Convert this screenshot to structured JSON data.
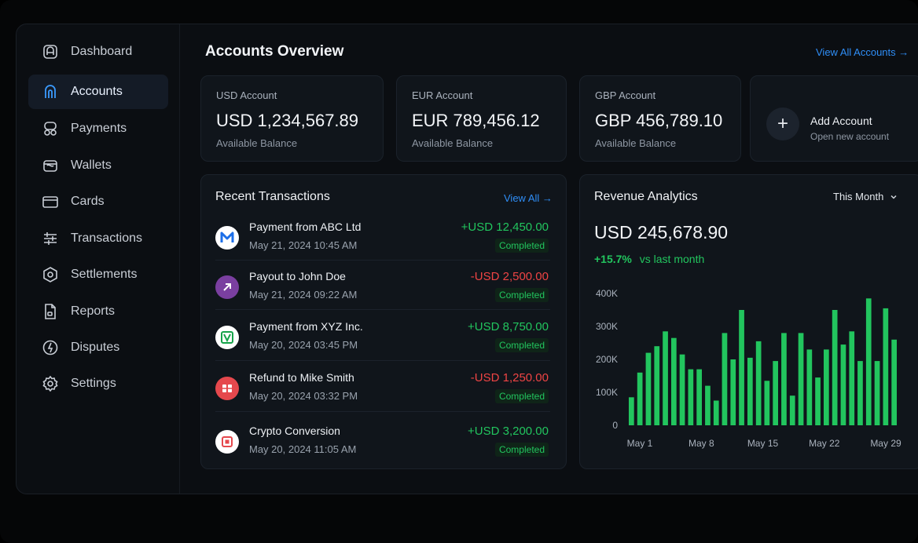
{
  "sidebar": {
    "items": [
      {
        "label": "Dashboard",
        "icon": "dashboard-icon"
      },
      {
        "label": "Accounts",
        "icon": "accounts-icon",
        "active": true
      },
      {
        "label": "Payments",
        "icon": "payments-icon"
      },
      {
        "label": "Wallets",
        "icon": "wallet-icon"
      },
      {
        "label": "Cards",
        "icon": "card-icon"
      },
      {
        "label": "Transactions",
        "icon": "sliders-icon"
      },
      {
        "label": "Settlements",
        "icon": "settlements-icon"
      },
      {
        "label": "Reports",
        "icon": "document-icon"
      },
      {
        "label": "Disputes",
        "icon": "alert-icon"
      },
      {
        "label": "Settings",
        "icon": "gear-icon"
      }
    ]
  },
  "header": {
    "title": "Accounts Overview",
    "view_all_label": "View All Accounts →"
  },
  "accounts": [
    {
      "name": "USD Account",
      "amount": "USD 1,234,567.89",
      "subtitle": "Available Balance"
    },
    {
      "name": "EUR Account",
      "amount": "EUR 789,456.12",
      "subtitle": "Available Balance"
    },
    {
      "name": "GBP Account",
      "amount": "GBP 456,789.10",
      "subtitle": "Available Balance"
    }
  ],
  "add_account": {
    "icon_glyph": "+",
    "title": "Add Account",
    "subtitle": "Open new account"
  },
  "transactions": {
    "title": "Recent Transactions",
    "view_all_label": "View All →",
    "items": [
      {
        "title": "Payment from ABC Ltd",
        "date": "May 21, 2024 10:45 AM",
        "amount": "+USD 12,450.00",
        "direction": "in",
        "status": "Completed",
        "icon": "brand-m-icon",
        "icon_bg": "#ffffff"
      },
      {
        "title": "Payout to John Doe",
        "date": "May 21, 2024 09:22 AM",
        "amount": "-USD 2,500.00",
        "direction": "out",
        "status": "Completed",
        "icon": "arrow-up-right-icon",
        "icon_bg": "#7a3fa0"
      },
      {
        "title": "Payment from XYZ Inc.",
        "date": "May 20, 2024 03:45 PM",
        "amount": "+USD 8,750.00",
        "direction": "in",
        "status": "Completed",
        "icon": "brand-v-icon",
        "icon_bg": "#ffffff"
      },
      {
        "title": "Refund to Mike Smith",
        "date": "May 20, 2024 03:32 PM",
        "amount": "-USD 1,250.00",
        "direction": "out",
        "status": "Completed",
        "icon": "refund-icon",
        "icon_bg": "#e5484d"
      },
      {
        "title": "Crypto Conversion",
        "date": "May 20, 2024 11:05 AM",
        "amount": "+USD 3,200.00",
        "direction": "in",
        "status": "Completed",
        "icon": "crypto-icon",
        "icon_bg": "#ffffff"
      }
    ]
  },
  "revenue": {
    "title": "Revenue Analytics",
    "period": "This Month",
    "amount": "USD 245,678.90",
    "growth": "+15.7%",
    "growth_label": "vs last month"
  },
  "colors": {
    "accent": "#2f8ef7",
    "positive": "#22c55e",
    "negative": "#ef4444",
    "bar": "#22c55e"
  },
  "chart_data": {
    "type": "bar",
    "y_ticks": [
      "400K",
      "300K",
      "200K",
      "100K",
      "0"
    ],
    "x_ticks": [
      "May 1",
      "May 8",
      "May 15",
      "May 22",
      "May 29"
    ],
    "ylim": [
      0,
      400000
    ],
    "values": [
      85000,
      160000,
      220000,
      240000,
      285000,
      265000,
      215000,
      170000,
      170000,
      120000,
      75000,
      280000,
      200000,
      350000,
      205000,
      255000,
      135000,
      195000,
      280000,
      90000,
      280000,
      230000,
      145000,
      230000,
      350000,
      245000,
      285000,
      195000,
      385000,
      195000,
      355000,
      260000
    ]
  }
}
